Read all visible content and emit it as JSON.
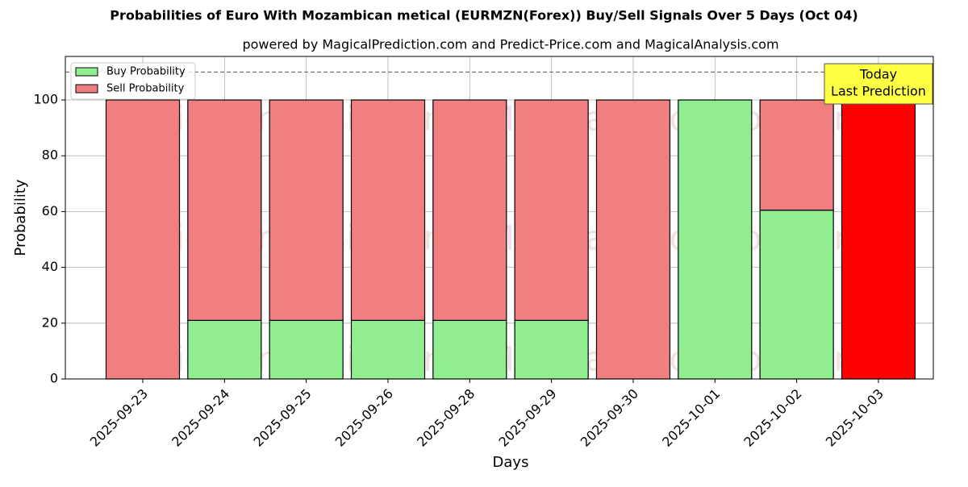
{
  "chart_data": {
    "type": "stacked_bar",
    "title": "Probabilities of Euro With Mozambican metical (EURMZN(Forex)) Buy/Sell Signals Over 5 Days (Oct 04)",
    "subtitle": "powered by MagicalPrediction.com and Predict-Price.com and MagicalAnalysis.com",
    "x_label": "Days",
    "y_label": "Probability",
    "categories": [
      "2025-09-23",
      "2025-09-24",
      "2025-09-25",
      "2025-09-26",
      "2025-09-28",
      "2025-09-29",
      "2025-09-30",
      "2025-10-01",
      "2025-10-02",
      "2025-10-03"
    ],
    "series": [
      {
        "name": "Buy Probability",
        "color": "#90ee90",
        "values": [
          0,
          21,
          21,
          21,
          21,
          21,
          0,
          100,
          60.5,
          0
        ]
      },
      {
        "name": "Sell Probability",
        "color": "#f08080",
        "values": [
          100,
          79,
          79,
          79,
          79,
          79,
          100,
          0,
          39.5,
          100
        ]
      }
    ],
    "highlight": {
      "index": 9,
      "color": "#ff0000"
    },
    "ylim": [
      0,
      115.6
    ],
    "yticks": [
      0,
      20,
      40,
      60,
      80,
      100
    ],
    "reference_line": 110,
    "annotation": [
      "Today",
      "Last Prediction"
    ],
    "watermarks": [
      "MagicalAnalysis.com",
      "MagicalPrediction.com"
    ],
    "grid": true,
    "legend": "upper-left"
  }
}
